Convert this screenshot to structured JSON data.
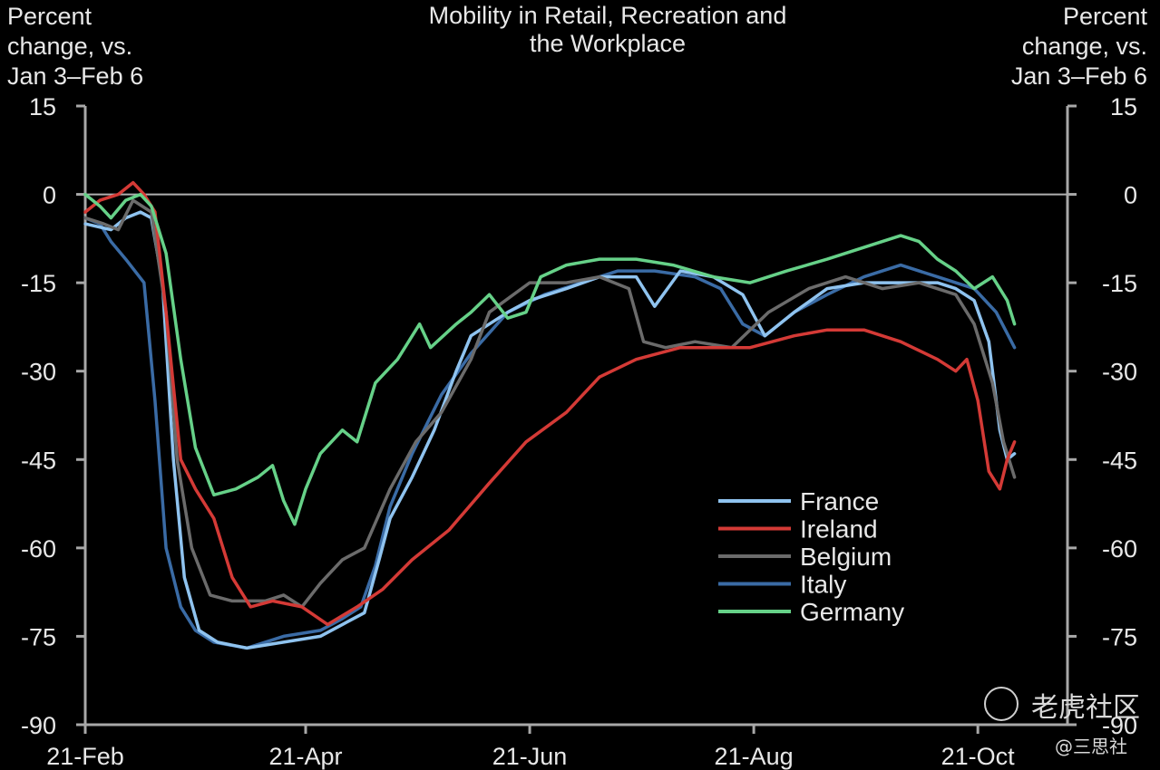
{
  "chart_data": {
    "type": "line",
    "title": [
      "Mobility in Retail, Recreation  and",
      "the Workplace"
    ],
    "ylabel_left": [
      "Percent",
      "change, vs.",
      "Jan 3–Feb 6"
    ],
    "ylabel_right": [
      "Percent",
      "change, vs.",
      "Jan 3–Feb 6"
    ],
    "ylim": [
      -90,
      15
    ],
    "yticks": [
      15,
      0,
      -15,
      -30,
      -45,
      -60,
      -75,
      -90
    ],
    "xlim": [
      "2020-02-21",
      "2020-10-31"
    ],
    "xticks": [
      {
        "label": "21-Feb",
        "date": "2020-02-21"
      },
      {
        "label": "21-Apr",
        "date": "2020-04-21"
      },
      {
        "label": "21-Jun",
        "date": "2020-06-21"
      },
      {
        "label": "21-Aug",
        "date": "2020-08-21"
      },
      {
        "label": "21-Oct",
        "date": "2020-10-21"
      }
    ],
    "zero_line": true,
    "legend_position": "lower-right",
    "series": [
      {
        "name": "France",
        "color": "#8fc3ef",
        "points": [
          [
            "2020-02-21",
            -5
          ],
          [
            "2020-02-28",
            -6
          ],
          [
            "2020-03-03",
            -4
          ],
          [
            "2020-03-07",
            -3
          ],
          [
            "2020-03-10",
            -4
          ],
          [
            "2020-03-13",
            -15
          ],
          [
            "2020-03-16",
            -45
          ],
          [
            "2020-03-19",
            -65
          ],
          [
            "2020-03-23",
            -74
          ],
          [
            "2020-03-28",
            -76
          ],
          [
            "2020-04-05",
            -77
          ],
          [
            "2020-04-15",
            -76
          ],
          [
            "2020-04-25",
            -75
          ],
          [
            "2020-05-01",
            -73
          ],
          [
            "2020-05-07",
            -71
          ],
          [
            "2020-05-11",
            -62
          ],
          [
            "2020-05-14",
            -55
          ],
          [
            "2020-05-20",
            -48
          ],
          [
            "2020-05-26",
            -40
          ],
          [
            "2020-06-01",
            -30
          ],
          [
            "2020-06-05",
            -24
          ],
          [
            "2020-06-10",
            -22
          ],
          [
            "2020-06-15",
            -20
          ],
          [
            "2020-06-21",
            -18
          ],
          [
            "2020-07-01",
            -16
          ],
          [
            "2020-07-10",
            -14
          ],
          [
            "2020-07-20",
            -14
          ],
          [
            "2020-07-25",
            -19
          ],
          [
            "2020-08-01",
            -13
          ],
          [
            "2020-08-10",
            -14
          ],
          [
            "2020-08-18",
            -17
          ],
          [
            "2020-08-24",
            -24
          ],
          [
            "2020-09-01",
            -20
          ],
          [
            "2020-09-10",
            -16
          ],
          [
            "2020-09-20",
            -15
          ],
          [
            "2020-09-30",
            -15
          ],
          [
            "2020-10-10",
            -15
          ],
          [
            "2020-10-15",
            -16
          ],
          [
            "2020-10-20",
            -18
          ],
          [
            "2020-10-24",
            -25
          ],
          [
            "2020-10-27",
            -40
          ],
          [
            "2020-10-29",
            -45
          ],
          [
            "2020-10-31",
            -44
          ]
        ]
      },
      {
        "name": "Ireland",
        "color": "#d43a36",
        "points": [
          [
            "2020-02-21",
            -3
          ],
          [
            "2020-02-25",
            -1
          ],
          [
            "2020-03-01",
            0
          ],
          [
            "2020-03-05",
            2
          ],
          [
            "2020-03-08",
            0
          ],
          [
            "2020-03-11",
            -3
          ],
          [
            "2020-03-14",
            -20
          ],
          [
            "2020-03-18",
            -45
          ],
          [
            "2020-03-22",
            -50
          ],
          [
            "2020-03-27",
            -55
          ],
          [
            "2020-04-01",
            -65
          ],
          [
            "2020-04-06",
            -70
          ],
          [
            "2020-04-12",
            -69
          ],
          [
            "2020-04-20",
            -70
          ],
          [
            "2020-04-27",
            -73
          ],
          [
            "2020-05-05",
            -70
          ],
          [
            "2020-05-12",
            -67
          ],
          [
            "2020-05-20",
            -62
          ],
          [
            "2020-05-30",
            -57
          ],
          [
            "2020-06-10",
            -49
          ],
          [
            "2020-06-20",
            -42
          ],
          [
            "2020-07-01",
            -37
          ],
          [
            "2020-07-10",
            -31
          ],
          [
            "2020-07-20",
            -28
          ],
          [
            "2020-08-01",
            -26
          ],
          [
            "2020-08-10",
            -26
          ],
          [
            "2020-08-20",
            -26
          ],
          [
            "2020-09-01",
            -24
          ],
          [
            "2020-09-10",
            -23
          ],
          [
            "2020-09-20",
            -23
          ],
          [
            "2020-09-30",
            -25
          ],
          [
            "2020-10-10",
            -28
          ],
          [
            "2020-10-15",
            -30
          ],
          [
            "2020-10-18",
            -28
          ],
          [
            "2020-10-21",
            -35
          ],
          [
            "2020-10-24",
            -47
          ],
          [
            "2020-10-27",
            -50
          ],
          [
            "2020-10-29",
            -45
          ],
          [
            "2020-10-31",
            -42
          ]
        ]
      },
      {
        "name": "Belgium",
        "color": "#6b6b6b",
        "points": [
          [
            "2020-02-21",
            -4
          ],
          [
            "2020-02-26",
            -5
          ],
          [
            "2020-03-01",
            -6
          ],
          [
            "2020-03-05",
            -1
          ],
          [
            "2020-03-10",
            -3
          ],
          [
            "2020-03-14",
            -20
          ],
          [
            "2020-03-17",
            -45
          ],
          [
            "2020-03-21",
            -60
          ],
          [
            "2020-03-26",
            -68
          ],
          [
            "2020-04-01",
            -69
          ],
          [
            "2020-04-10",
            -69
          ],
          [
            "2020-04-15",
            -68
          ],
          [
            "2020-04-20",
            -70
          ],
          [
            "2020-04-25",
            -66
          ],
          [
            "2020-05-01",
            -62
          ],
          [
            "2020-05-07",
            -60
          ],
          [
            "2020-05-14",
            -50
          ],
          [
            "2020-05-21",
            -42
          ],
          [
            "2020-05-28",
            -37
          ],
          [
            "2020-06-05",
            -28
          ],
          [
            "2020-06-10",
            -20
          ],
          [
            "2020-06-21",
            -15
          ],
          [
            "2020-07-01",
            -15
          ],
          [
            "2020-07-10",
            -14
          ],
          [
            "2020-07-18",
            -16
          ],
          [
            "2020-07-22",
            -25
          ],
          [
            "2020-07-28",
            -26
          ],
          [
            "2020-08-05",
            -25
          ],
          [
            "2020-08-15",
            -26
          ],
          [
            "2020-08-25",
            -20
          ],
          [
            "2020-09-05",
            -16
          ],
          [
            "2020-09-15",
            -14
          ],
          [
            "2020-09-25",
            -16
          ],
          [
            "2020-10-05",
            -15
          ],
          [
            "2020-10-15",
            -17
          ],
          [
            "2020-10-20",
            -22
          ],
          [
            "2020-10-25",
            -32
          ],
          [
            "2020-10-28",
            -42
          ],
          [
            "2020-10-31",
            -48
          ]
        ]
      },
      {
        "name": "Italy",
        "color": "#3a6ba5",
        "points": [
          [
            "2020-02-21",
            -4
          ],
          [
            "2020-02-25",
            -5
          ],
          [
            "2020-02-28",
            -8
          ],
          [
            "2020-03-03",
            -11
          ],
          [
            "2020-03-08",
            -15
          ],
          [
            "2020-03-11",
            -35
          ],
          [
            "2020-03-14",
            -60
          ],
          [
            "2020-03-18",
            -70
          ],
          [
            "2020-03-22",
            -74
          ],
          [
            "2020-03-27",
            -76
          ],
          [
            "2020-04-05",
            -77
          ],
          [
            "2020-04-15",
            -75
          ],
          [
            "2020-04-25",
            -74
          ],
          [
            "2020-05-01",
            -72
          ],
          [
            "2020-05-06",
            -70
          ],
          [
            "2020-05-10",
            -63
          ],
          [
            "2020-05-14",
            -53
          ],
          [
            "2020-05-20",
            -44
          ],
          [
            "2020-05-28",
            -34
          ],
          [
            "2020-06-05",
            -27
          ],
          [
            "2020-06-15",
            -20
          ],
          [
            "2020-06-25",
            -17
          ],
          [
            "2020-07-05",
            -15
          ],
          [
            "2020-07-15",
            -13
          ],
          [
            "2020-07-25",
            -13
          ],
          [
            "2020-08-05",
            -14
          ],
          [
            "2020-08-12",
            -16
          ],
          [
            "2020-08-18",
            -22
          ],
          [
            "2020-08-24",
            -24
          ],
          [
            "2020-09-01",
            -20
          ],
          [
            "2020-09-10",
            -17
          ],
          [
            "2020-09-20",
            -14
          ],
          [
            "2020-09-30",
            -12
          ],
          [
            "2020-10-10",
            -14
          ],
          [
            "2020-10-20",
            -16
          ],
          [
            "2020-10-26",
            -20
          ],
          [
            "2020-10-31",
            -26
          ]
        ]
      },
      {
        "name": "Germany",
        "color": "#66d188",
        "points": [
          [
            "2020-02-21",
            0
          ],
          [
            "2020-02-25",
            -2
          ],
          [
            "2020-02-28",
            -4
          ],
          [
            "2020-03-03",
            -1
          ],
          [
            "2020-03-07",
            0
          ],
          [
            "2020-03-10",
            -2
          ],
          [
            "2020-03-14",
            -10
          ],
          [
            "2020-03-18",
            -28
          ],
          [
            "2020-03-22",
            -43
          ],
          [
            "2020-03-27",
            -51
          ],
          [
            "2020-04-02",
            -50
          ],
          [
            "2020-04-08",
            -48
          ],
          [
            "2020-04-12",
            -46
          ],
          [
            "2020-04-15",
            -52
          ],
          [
            "2020-04-18",
            -56
          ],
          [
            "2020-04-21",
            -50
          ],
          [
            "2020-04-25",
            -44
          ],
          [
            "2020-05-01",
            -40
          ],
          [
            "2020-05-05",
            -42
          ],
          [
            "2020-05-10",
            -32
          ],
          [
            "2020-05-16",
            -28
          ],
          [
            "2020-05-22",
            -22
          ],
          [
            "2020-05-25",
            -26
          ],
          [
            "2020-06-01",
            -22
          ],
          [
            "2020-06-05",
            -20
          ],
          [
            "2020-06-10",
            -17
          ],
          [
            "2020-06-15",
            -21
          ],
          [
            "2020-06-20",
            -20
          ],
          [
            "2020-06-24",
            -14
          ],
          [
            "2020-07-01",
            -12
          ],
          [
            "2020-07-10",
            -11
          ],
          [
            "2020-07-20",
            -11
          ],
          [
            "2020-07-30",
            -12
          ],
          [
            "2020-08-10",
            -14
          ],
          [
            "2020-08-20",
            -15
          ],
          [
            "2020-08-30",
            -13
          ],
          [
            "2020-09-10",
            -11
          ],
          [
            "2020-09-20",
            -9
          ],
          [
            "2020-09-30",
            -7
          ],
          [
            "2020-10-05",
            -8
          ],
          [
            "2020-10-10",
            -11
          ],
          [
            "2020-10-15",
            -13
          ],
          [
            "2020-10-20",
            -16
          ],
          [
            "2020-10-25",
            -14
          ],
          [
            "2020-10-29",
            -18
          ],
          [
            "2020-10-31",
            -22
          ]
        ]
      }
    ]
  },
  "watermark": {
    "main": "老虎社区",
    "sub": "@三思社"
  }
}
